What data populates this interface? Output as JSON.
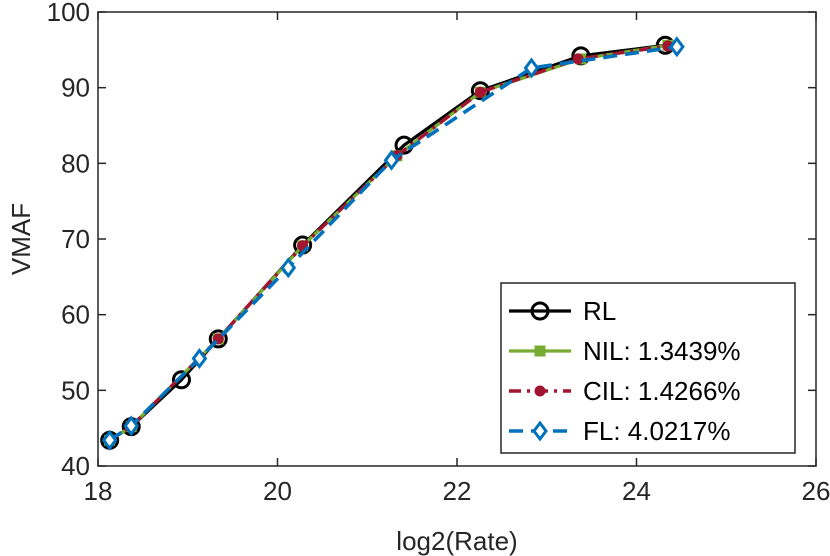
{
  "chart_data": {
    "type": "line",
    "title": "",
    "xlabel": "log2(Rate)",
    "ylabel": "VMAF",
    "xlim": [
      18,
      26
    ],
    "ylim": [
      40,
      100
    ],
    "xticks": [
      18,
      20,
      22,
      24,
      26
    ],
    "yticks": [
      40,
      50,
      60,
      70,
      80,
      90,
      100
    ],
    "grid": false,
    "legend_position": "bottom-right",
    "series": [
      {
        "name": "RL",
        "color": "#000000",
        "line_style": "solid",
        "marker": "circle",
        "points": [
          {
            "x": 18.13,
            "y": 43.4
          },
          {
            "x": 18.37,
            "y": 45.2
          },
          {
            "x": 18.93,
            "y": 51.4
          },
          {
            "x": 19.34,
            "y": 56.8
          },
          {
            "x": 20.28,
            "y": 69.2
          },
          {
            "x": 21.41,
            "y": 82.4
          },
          {
            "x": 22.26,
            "y": 89.6
          },
          {
            "x": 23.38,
            "y": 94.2
          },
          {
            "x": 24.32,
            "y": 95.6
          }
        ]
      },
      {
        "name": "NIL: 1.3439%",
        "color": "#77ac30",
        "line_style": "solid",
        "marker": "square",
        "points": [
          {
            "x": 18.13,
            "y": 43.4
          },
          {
            "x": 18.37,
            "y": 45.2
          },
          {
            "x": 19.34,
            "y": 56.8
          },
          {
            "x": 20.28,
            "y": 69.1
          },
          {
            "x": 21.33,
            "y": 81.0
          },
          {
            "x": 22.26,
            "y": 89.4
          },
          {
            "x": 23.38,
            "y": 93.8
          },
          {
            "x": 24.35,
            "y": 95.6
          }
        ]
      },
      {
        "name": "CIL: 1.4266%",
        "color": "#a2142f",
        "line_style": "dashdot",
        "marker": "dot",
        "points": [
          {
            "x": 18.13,
            "y": 43.4
          },
          {
            "x": 18.37,
            "y": 45.2
          },
          {
            "x": 19.34,
            "y": 56.8
          },
          {
            "x": 20.28,
            "y": 69.1
          },
          {
            "x": 21.33,
            "y": 81.0
          },
          {
            "x": 22.26,
            "y": 89.4
          },
          {
            "x": 23.35,
            "y": 93.8
          },
          {
            "x": 24.35,
            "y": 95.5
          }
        ]
      },
      {
        "name": "FL: 4.0217%",
        "color": "#0072bd",
        "line_style": "dashed",
        "marker": "diamond",
        "points": [
          {
            "x": 18.13,
            "y": 43.4
          },
          {
            "x": 18.37,
            "y": 45.3
          },
          {
            "x": 19.13,
            "y": 54.2
          },
          {
            "x": 20.12,
            "y": 66.2
          },
          {
            "x": 21.27,
            "y": 80.4
          },
          {
            "x": 22.83,
            "y": 92.6
          },
          {
            "x": 24.45,
            "y": 95.4
          }
        ]
      }
    ]
  }
}
